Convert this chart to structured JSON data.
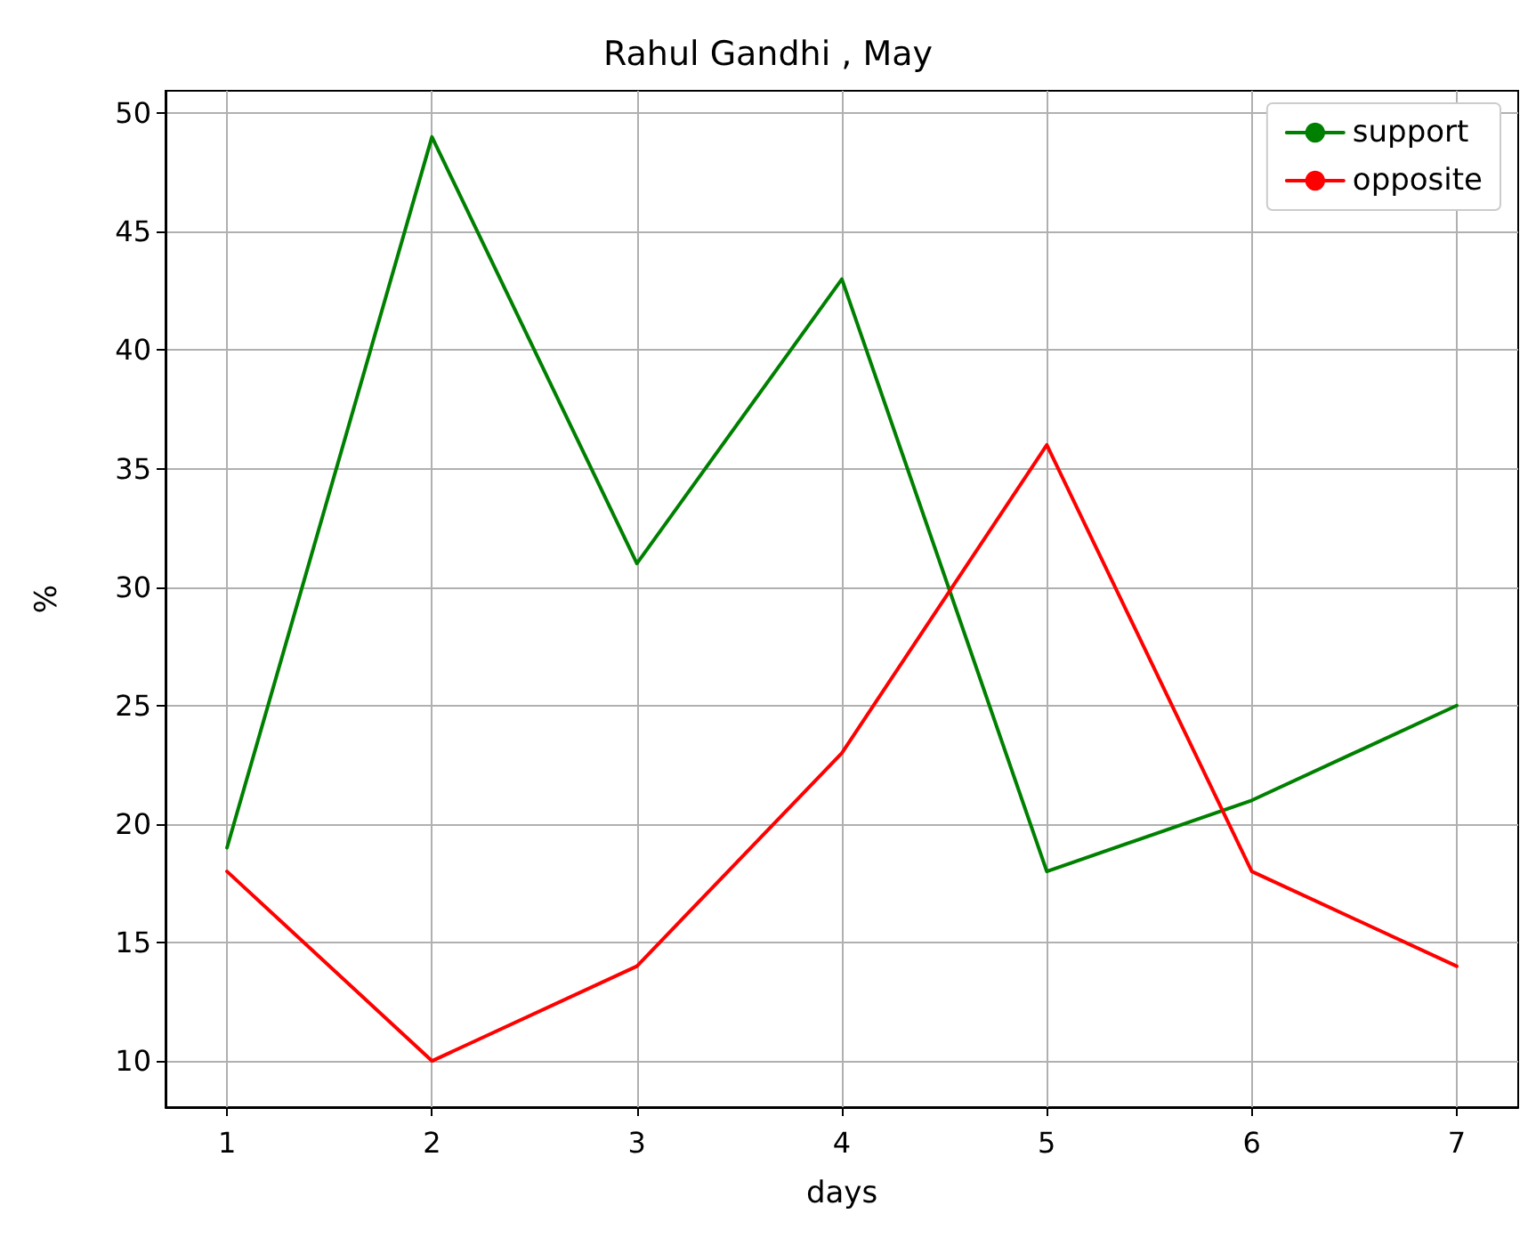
{
  "chart_data": {
    "type": "line",
    "title": "Rahul Gandhi , May",
    "xlabel": "days",
    "ylabel": "%",
    "x": [
      1,
      2,
      3,
      4,
      5,
      6,
      7
    ],
    "series": [
      {
        "name": "support",
        "color": "#008000",
        "values": [
          19,
          49,
          31,
          43,
          18,
          21,
          25
        ]
      },
      {
        "name": "opposite",
        "color": "#ff0000",
        "values": [
          18,
          10,
          14,
          23,
          36,
          18,
          14
        ]
      }
    ],
    "xlim": [
      0.7,
      7.3
    ],
    "xticks": [
      1,
      2,
      3,
      4,
      5,
      6,
      7
    ],
    "ylim": [
      8.05,
      50.95
    ],
    "yticks": [
      10,
      15,
      20,
      25,
      30,
      35,
      40,
      45,
      50
    ],
    "grid": true,
    "legend": "top right",
    "marker": "none",
    "line_style": "solid"
  }
}
